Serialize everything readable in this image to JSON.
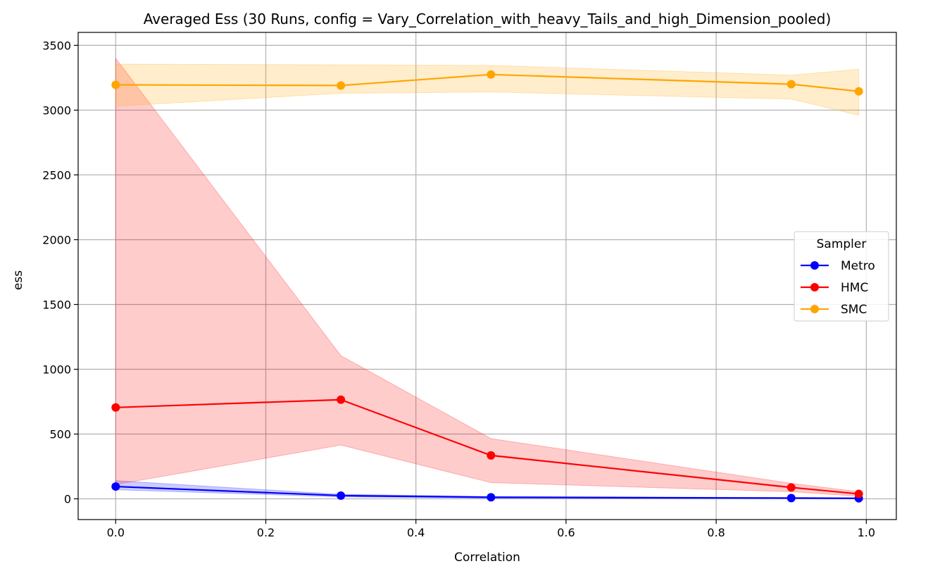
{
  "chart_data": {
    "type": "line",
    "title": "Averaged Ess (30 Runs, config = Vary_Correlation_with_heavy_Tails_and_high_Dimension_pooled)",
    "xlabel": "Correlation",
    "ylabel": "ess",
    "xlim": [
      -0.05,
      1.04
    ],
    "ylim": [
      -160,
      3600
    ],
    "xticks": [
      0.0,
      0.2,
      0.4,
      0.6,
      0.8,
      1.0
    ],
    "xtick_labels": [
      "0.0",
      "0.2",
      "0.4",
      "0.6",
      "0.8",
      "1.0"
    ],
    "yticks": [
      0,
      500,
      1000,
      1500,
      2000,
      2500,
      3000,
      3500
    ],
    "ytick_labels": [
      "0",
      "500",
      "1000",
      "1500",
      "2000",
      "2500",
      "3000",
      "3500"
    ],
    "grid": true,
    "legend": {
      "title": "Sampler",
      "placement": "center-right"
    },
    "x": [
      0.0,
      0.3,
      0.5,
      0.9,
      0.99
    ],
    "series": [
      {
        "name": "Metro",
        "color": "#0000ff",
        "values": [
          95,
          25,
          12,
          6,
          4
        ],
        "band_lower": [
          70,
          15,
          6,
          2,
          1
        ],
        "band_upper": [
          140,
          35,
          18,
          10,
          7
        ]
      },
      {
        "name": "HMC",
        "color": "#ff0000",
        "values": [
          705,
          765,
          335,
          88,
          38
        ],
        "band_lower": [
          110,
          415,
          125,
          55,
          20
        ],
        "band_upper": [
          3400,
          1105,
          465,
          120,
          55
        ]
      },
      {
        "name": "SMC",
        "color": "#ffa500",
        "values": [
          3195,
          3190,
          3275,
          3200,
          3145
        ],
        "band_lower": [
          3030,
          3130,
          3140,
          3085,
          2960
        ],
        "band_upper": [
          3355,
          3350,
          3345,
          3270,
          3315
        ]
      }
    ]
  }
}
